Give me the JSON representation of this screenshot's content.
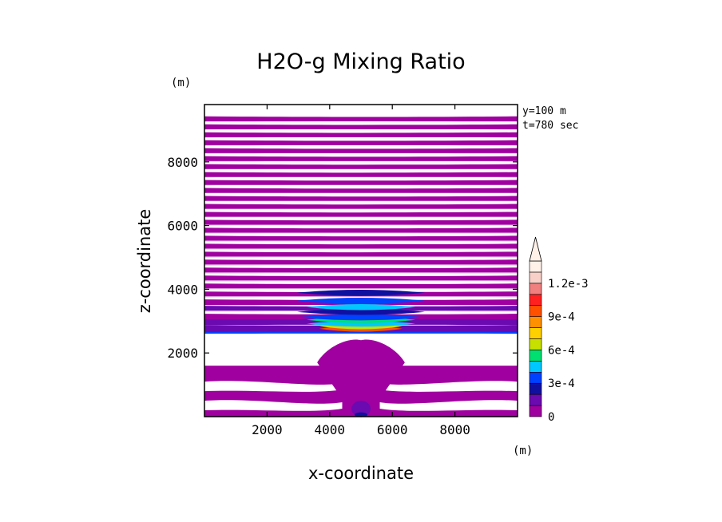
{
  "chart_data": {
    "type": "heatmap",
    "title": "H2O-g Mixing Ratio",
    "xlabel": "x-coordinate",
    "ylabel": "z-coordinate",
    "x_unit": "(m)",
    "y_unit": "(m)",
    "xlim": [
      0,
      10000
    ],
    "ylim": [
      0,
      9800
    ],
    "x_ticks": [
      2000,
      4000,
      6000,
      8000
    ],
    "y_ticks": [
      2000,
      4000,
      6000,
      8000
    ],
    "info": [
      "y=100 m",
      "t=780 sec"
    ],
    "grid": false,
    "colorbar": {
      "placement": "right",
      "levels": [
        0,
        0.0001,
        0.0002,
        0.0003,
        0.0004,
        0.0005,
        0.0006,
        0.0007,
        0.0008,
        0.0009,
        0.001,
        0.0011,
        0.0012,
        0.0013
      ],
      "colors": [
        "#a000a0",
        "#6a0ab0",
        "#1010a0",
        "#0040ff",
        "#00c8ff",
        "#00e070",
        "#c8e000",
        "#ffd000",
        "#ff9000",
        "#ff5000",
        "#ff2020",
        "#f08080",
        "#f8d0c8",
        "#fff0e8"
      ],
      "tick_values": [
        0,
        0.0003,
        0.0006,
        0.0009,
        0.0012
      ],
      "tick_labels": [
        "0",
        "3e-4",
        "6e-4",
        "9e-4",
        "1.2e-3"
      ],
      "extend": "max"
    },
    "field": {
      "white_level_count": 2,
      "lower_white_gap_z": [
        1600,
        2700
      ],
      "bands": [
        {
          "z": [
            2700,
            2780
          ],
          "level": 3
        },
        {
          "z": [
            2780,
            2880
          ],
          "level": 1
        },
        {
          "z": [
            3000,
            3100
          ],
          "level": 1
        },
        {
          "z": [
            3150,
            3230
          ],
          "level": 0
        },
        {
          "z": [
            3400,
            3480
          ],
          "level": 1
        },
        {
          "z": [
            3600,
            3680
          ],
          "level": 0
        },
        {
          "z": [
            3850,
            3930
          ],
          "level": 0
        },
        {
          "z": [
            4100,
            4180
          ],
          "level": 0
        },
        {
          "z": [
            4350,
            4430
          ],
          "level": 0
        },
        {
          "z": [
            4600,
            4680
          ],
          "level": 0
        },
        {
          "z": [
            4850,
            4930
          ],
          "level": 0
        },
        {
          "z": [
            5100,
            5180
          ],
          "level": 0
        },
        {
          "z": [
            5350,
            5430
          ],
          "level": 0
        },
        {
          "z": [
            5600,
            5680
          ],
          "level": 0
        },
        {
          "z": [
            5850,
            5930
          ],
          "level": 0
        },
        {
          "z": [
            6100,
            6180
          ],
          "level": 0
        },
        {
          "z": [
            6350,
            6430
          ],
          "level": 0
        },
        {
          "z": [
            6600,
            6680
          ],
          "level": 0
        },
        {
          "z": [
            6850,
            6930
          ],
          "level": 0
        },
        {
          "z": [
            7100,
            7180
          ],
          "level": 0
        },
        {
          "z": [
            7350,
            7430
          ],
          "level": 0
        },
        {
          "z": [
            7600,
            7680
          ],
          "level": 0
        },
        {
          "z": [
            7850,
            7930
          ],
          "level": 0
        },
        {
          "z": [
            8100,
            8180
          ],
          "level": 0
        },
        {
          "z": [
            8350,
            8430
          ],
          "level": 0
        },
        {
          "z": [
            8600,
            8680
          ],
          "level": 0
        },
        {
          "z": [
            8850,
            8930
          ],
          "level": 0
        },
        {
          "z": [
            9100,
            9180
          ],
          "level": 0
        },
        {
          "z": [
            9350,
            9430
          ],
          "level": 0
        }
      ],
      "core": [
        {
          "z": [
            2720,
            2800
          ],
          "level": 9
        },
        {
          "z": [
            2800,
            2880
          ],
          "level": 6
        },
        {
          "z": [
            2880,
            2960
          ],
          "level": 4
        },
        {
          "z": [
            3000,
            3080
          ],
          "level": 5
        },
        {
          "z": [
            3080,
            3160
          ],
          "level": 3
        },
        {
          "z": [
            3250,
            3330
          ],
          "level": 2
        },
        {
          "z": [
            3400,
            3480
          ],
          "level": 4
        },
        {
          "z": [
            3600,
            3680
          ],
          "level": 3
        },
        {
          "z": [
            3850,
            3930
          ],
          "level": 2
        }
      ]
    }
  }
}
